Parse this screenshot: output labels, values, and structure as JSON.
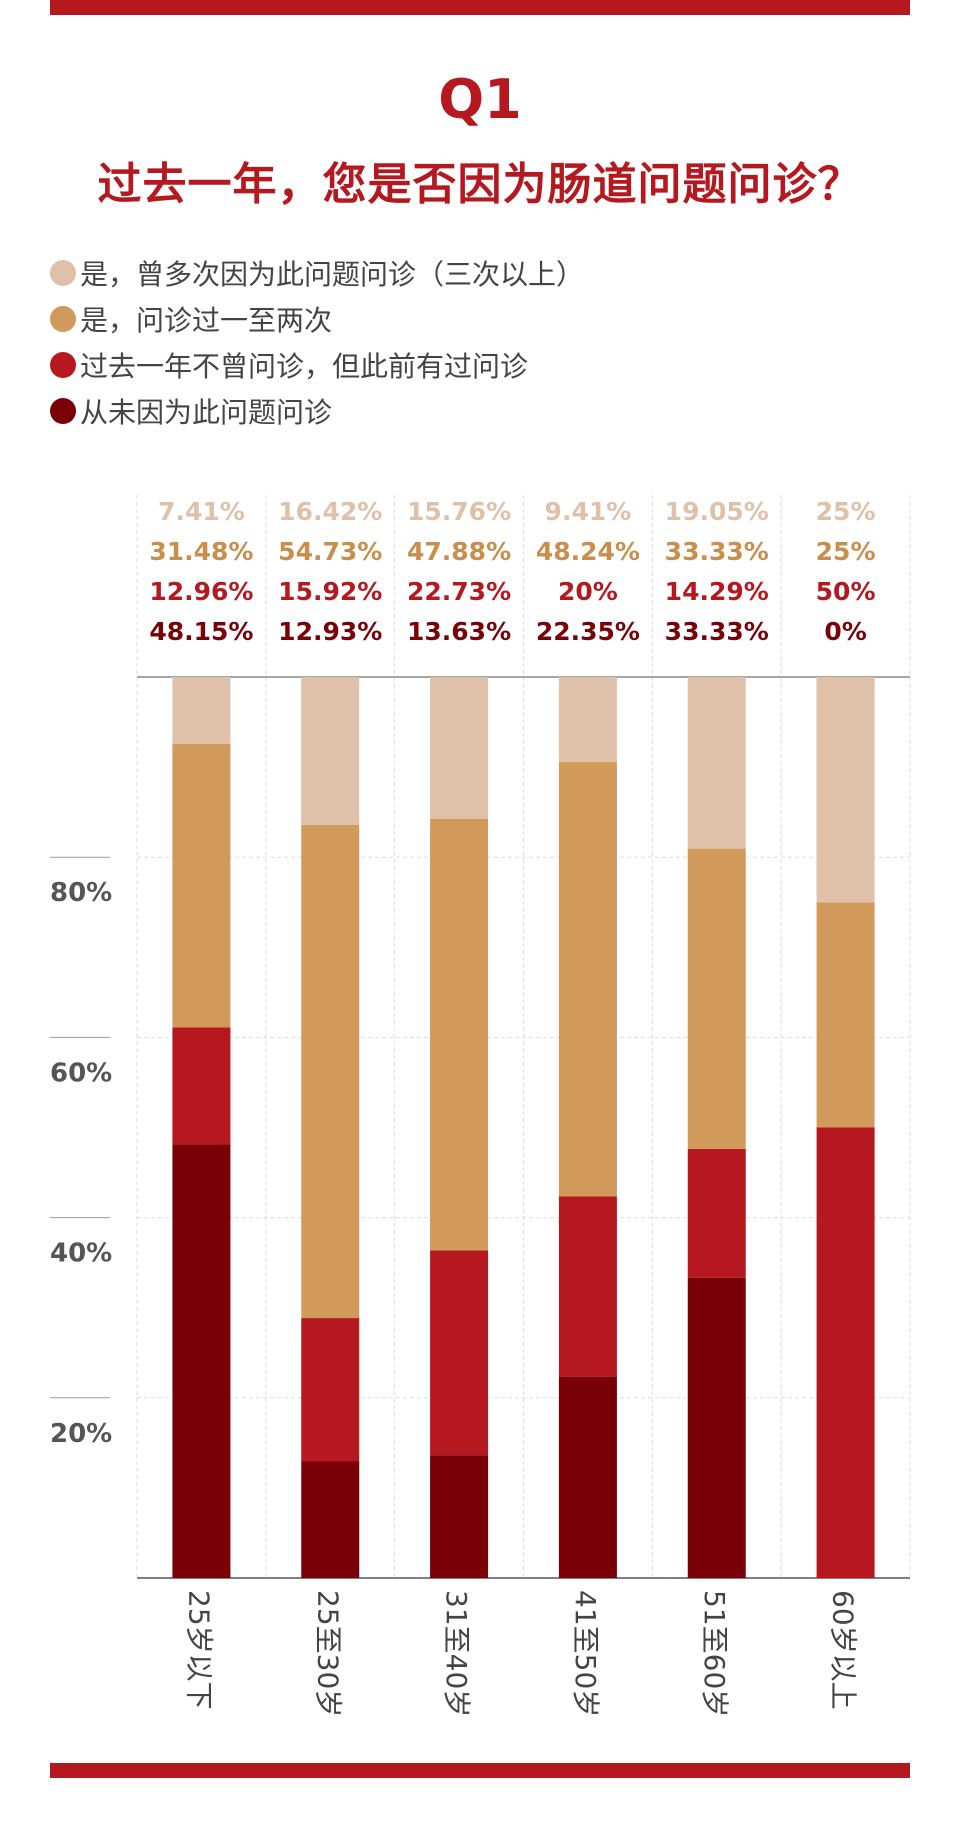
{
  "header": {
    "title": "Q1",
    "subtitle": "过去一年，您是否因为肠道问题问诊？"
  },
  "colors": {
    "accent": "#b5191f",
    "series": [
      "#dfc0a9",
      "#d19a5a",
      "#b5191f",
      "#7a0008"
    ]
  },
  "chart_data": {
    "type": "bar",
    "stacked": true,
    "categories": [
      "25岁以下",
      "25至30岁",
      "31至40岁",
      "41至50岁",
      "51至60岁",
      "60岁以上"
    ],
    "series": [
      {
        "name": "是，曾多次因为此问题问诊（三次以上）",
        "values": [
          7.41,
          16.42,
          15.76,
          9.41,
          19.05,
          25
        ],
        "labels": [
          "7.41%",
          "16.42%",
          "15.76%",
          "9.41%",
          "19.05%",
          "25%"
        ]
      },
      {
        "name": "是，问诊过一至两次",
        "values": [
          31.48,
          54.73,
          47.88,
          48.24,
          33.33,
          25
        ],
        "labels": [
          "31.48%",
          "54.73%",
          "47.88%",
          "48.24%",
          "33.33%",
          "25%"
        ]
      },
      {
        "name": "过去一年不曾问诊，但此前有过问诊",
        "values": [
          12.96,
          15.92,
          22.73,
          20,
          14.29,
          50
        ],
        "labels": [
          "12.96%",
          "15.92%",
          "22.73%",
          "20%",
          "14.29%",
          "50%"
        ]
      },
      {
        "name": "从未因为此问题问诊",
        "values": [
          48.15,
          12.93,
          13.63,
          22.35,
          33.33,
          0
        ],
        "labels": [
          "48.15%",
          "12.93%",
          "13.63%",
          "22.35%",
          "33.33%",
          "0%"
        ]
      }
    ],
    "yticks": [
      "20%",
      "40%",
      "60%",
      "80%"
    ],
    "ylim": [
      0,
      100
    ],
    "grid": true,
    "legend_position": "top"
  }
}
